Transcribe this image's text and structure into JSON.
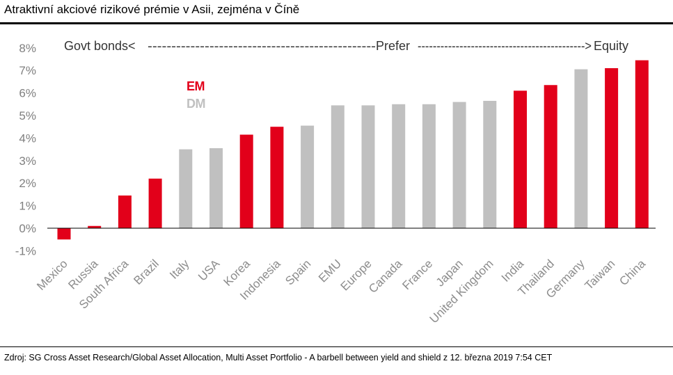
{
  "title": "Atraktivní akciové rizikové prémie v Asii, zejména v Číně",
  "source": "Zdroj: SG Cross Asset Research/Global Asset Allocation, Multi Asset Portfolio - A barbell between yield and shield z 12. března 2019 7:54 CET",
  "colors": {
    "EM": "#e2001a",
    "DM": "#c0c0c0",
    "axis_text": "#7f7f7f"
  },
  "chart_data": {
    "type": "bar",
    "ylim": [
      -1,
      8
    ],
    "ytick_labels": [
      "-1%",
      "0%",
      "1%",
      "2%",
      "3%",
      "4%",
      "5%",
      "6%",
      "7%",
      "8%"
    ],
    "ytick_values": [
      -1,
      0,
      1,
      2,
      3,
      4,
      5,
      6,
      7,
      8
    ],
    "categories": [
      "Mexico",
      "Russia",
      "South Africa",
      "Brazil",
      "Italy",
      "USA",
      "Korea",
      "Indonesia",
      "Spain",
      "EMU",
      "Europe",
      "Canada",
      "France",
      "Japan",
      "United Kingdom",
      "India",
      "Thailand",
      "Germany",
      "Taiwan",
      "China"
    ],
    "values": [
      -0.5,
      0.1,
      1.45,
      2.2,
      3.5,
      3.55,
      4.15,
      4.5,
      4.55,
      5.45,
      5.45,
      5.5,
      5.5,
      5.6,
      5.65,
      6.1,
      6.35,
      7.05,
      7.1,
      7.45
    ],
    "groups": [
      "EM",
      "EM",
      "EM",
      "EM",
      "DM",
      "DM",
      "EM",
      "EM",
      "DM",
      "DM",
      "DM",
      "DM",
      "DM",
      "DM",
      "DM",
      "EM",
      "EM",
      "DM",
      "EM",
      "EM"
    ],
    "legend": [
      "EM",
      "DM"
    ],
    "annotation": {
      "left": "Govt bonds<",
      "dashes_left": "------------------------------------------------",
      "center": "Prefer",
      "dashes_right": "-------------------------------------------->",
      "right": "Equity"
    },
    "grid": false
  }
}
